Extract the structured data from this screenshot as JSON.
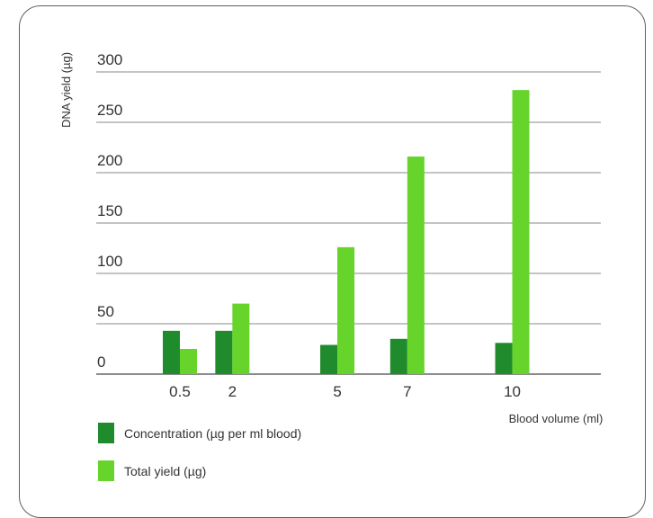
{
  "chart_data": {
    "type": "bar",
    "categories": [
      "0.5",
      "2",
      "5",
      "7",
      "10"
    ],
    "x": [
      0.5,
      2,
      5,
      7,
      10
    ],
    "series": [
      {
        "name": "Concentration (µg per ml blood)",
        "values": [
          43,
          43,
          29,
          35,
          31
        ],
        "color": "#1f8b2c"
      },
      {
        "name": "Total yield (µg)",
        "values": [
          25,
          70,
          126,
          216,
          282
        ],
        "color": "#66d42a"
      }
    ],
    "title": "",
    "xlabel": "Blood volume (ml)",
    "ylabel": "DNA yield (µg)",
    "ylim": [
      0,
      300
    ],
    "yticks": [
      0,
      50,
      100,
      150,
      200,
      250,
      300
    ],
    "grid": true,
    "legend_position": "bottom-left"
  }
}
